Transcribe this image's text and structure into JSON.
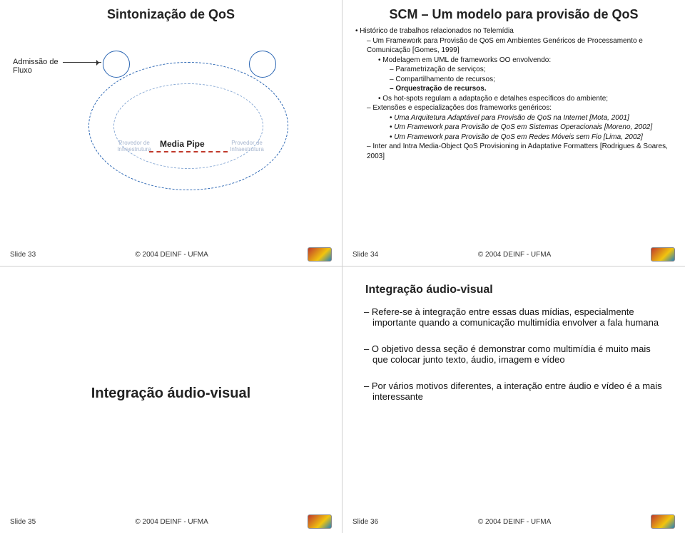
{
  "footer": {
    "copyright": "© 2004 DEINF - UFMA"
  },
  "q1": {
    "title": "Sintonização de QoS",
    "admission": "Admissão de Fluxo",
    "mediaPipe": "Media Pipe",
    "infraL": "Provedor de Infraestrutura",
    "infraR": "Provedor de Infraestrutura",
    "slide": "Slide 33"
  },
  "q2": {
    "title": "SCM – Um modelo para provisão de QoS",
    "slide": "Slide 34",
    "b1": "Histórico de trabalhos relacionados no Telemídia",
    "b2": "Um Framework para Provisão de QoS em Ambientes Genéricos de Processamento e Comunicação [Gomes, 1999]",
    "b3": "Modelagem em UML de frameworks OO envolvendo:",
    "b4": "Parametrização de serviços;",
    "b5": "Compartilhamento de recursos;",
    "b6": "Orquestração de recursos.",
    "b7": "Os hot-spots regulam a adaptação e detalhes específicos do ambiente;",
    "b8": "Extensões e especializações dos frameworks genéricos:",
    "b9": "Uma Arquitetura Adaptável para Provisão de QoS na Internet [Mota, 2001]",
    "b10": "Um Framework para Provisão de QoS em Sistemas Operacionais [Moreno, 2002]",
    "b11": "Um Framework para Provisão de QoS em Redes Móveis sem Fio [Lima, 2002]",
    "b12": "Inter and Intra Media-Object QoS Provisioning in Adaptative Formatters [Rodrigues & Soares, 2003]"
  },
  "q3": {
    "label": "Integração áudio-visual",
    "slide": "Slide 35"
  },
  "q4": {
    "title": "Integração áudio-visual",
    "slide": "Slide 36",
    "p1": "Refere-se à integração entre essas duas mídias, especialmente importante quando a comunicação multimídia envolver a fala humana",
    "p2": "O objetivo dessa seção é demonstrar como multimídia é muito mais que colocar junto texto, áudio, imagem e vídeo",
    "p3": "Por vários motivos diferentes, a interação entre áudio e vídeo é a mais interessante"
  }
}
